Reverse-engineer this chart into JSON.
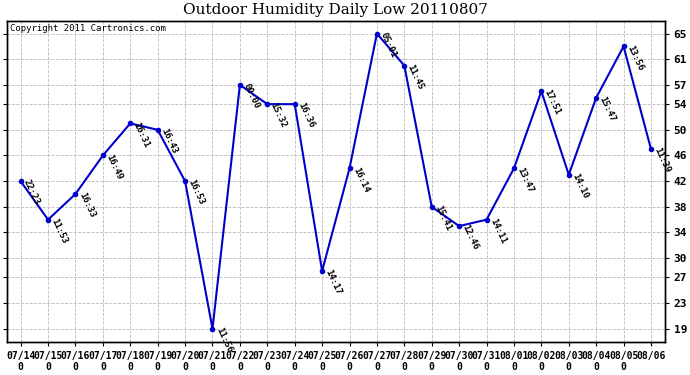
{
  "title": "Outdoor Humidity Daily Low 20110807",
  "copyright": "Copyright 2011 Cartronics.com",
  "line_color": "#0000cc",
  "bg_color": "#ffffff",
  "grid_color": "#bbbbbb",
  "dates": [
    "07/14",
    "07/15",
    "07/16",
    "07/17",
    "07/18",
    "07/19",
    "07/20",
    "07/21",
    "07/22",
    "07/23",
    "07/24",
    "07/25",
    "07/26",
    "07/27",
    "07/28",
    "07/29",
    "07/30",
    "07/31",
    "08/01",
    "08/02",
    "08/03",
    "08/04",
    "08/05",
    "08/06"
  ],
  "xtick_labels": [
    "07/14\n0",
    "07/15\n0",
    "07/16\n0",
    "07/17\n0",
    "07/18\n0",
    "07/19\n0",
    "07/20\n0",
    "07/21\n0",
    "07/22\n0",
    "07/23\n0",
    "07/24\n0",
    "07/25\n0",
    "07/26\n0",
    "07/27\n0",
    "07/28\n0",
    "07/29\n0",
    "07/30\n0",
    "07/31\n0",
    "08/01\n0",
    "08/02\n0",
    "08/03\n0",
    "08/04\n0",
    "08/05\n0",
    "08/06"
  ],
  "values": [
    42,
    36,
    40,
    46,
    51,
    50,
    42,
    19,
    57,
    54,
    54,
    28,
    44,
    65,
    60,
    38,
    35,
    36,
    44,
    56,
    43,
    55,
    63,
    47
  ],
  "labels": [
    "22:23",
    "11:53",
    "16:33",
    "16:49",
    "16:31",
    "16:43",
    "16:53",
    "11:56",
    "00:00",
    "15:32",
    "16:36",
    "14:17",
    "16:14",
    "05:01",
    "11:45",
    "15:41",
    "12:46",
    "14:11",
    "13:47",
    "17:51",
    "14:10",
    "15:47",
    "13:56",
    "11:39"
  ],
  "yticks": [
    19,
    23,
    27,
    30,
    34,
    38,
    42,
    46,
    50,
    54,
    57,
    61,
    65
  ],
  "ylim": [
    17,
    67
  ],
  "marker_size": 3,
  "figsize": [
    6.9,
    3.75
  ],
  "dpi": 100
}
